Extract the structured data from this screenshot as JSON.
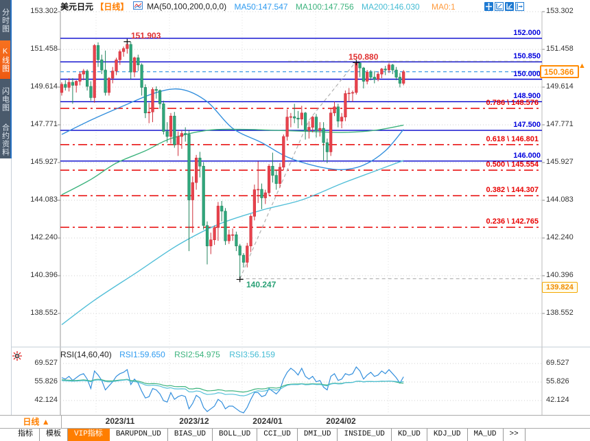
{
  "sidebar": {
    "items": [
      {
        "label": "分时图",
        "active": false
      },
      {
        "label": "K线图",
        "active": true
      },
      {
        "label": "闪电图",
        "active": false
      },
      {
        "label": "合约资料",
        "active": false
      }
    ]
  },
  "header": {
    "symbol": "美元日元",
    "period": "【日线】",
    "ma_formula": "MA(50,100,200,0,0,0)",
    "ma50": "MA50:147.547",
    "ma100": "MA100:147.756",
    "ma200": "MA200:146.030",
    "ma0": "MA0:1",
    "icons": [
      "crosshair-move-icon",
      "axes-icon",
      "axes-filled-icon",
      "pan-right-icon"
    ]
  },
  "colors": {
    "up": "#e8434d",
    "up_stroke": "#cf2f3a",
    "down": "#2fa77c",
    "down_stroke": "#23855f",
    "ma50": "#338fdd",
    "ma100": "#3cb37d",
    "ma200": "#52bfd8",
    "level_blue": "#0000cc",
    "level_red": "#e60000",
    "current_dash": "#45a0e6",
    "accent_orange": "#ff8a00",
    "grid": "#cfcfcf",
    "trend": "#b0b0b0"
  },
  "price_axis": {
    "ticks": [
      153.302,
      151.458,
      149.614,
      147.771,
      145.927,
      144.083,
      142.24,
      140.396,
      138.552
    ],
    "last_price": "150.366",
    "alert_price": "139.824"
  },
  "chart_data": {
    "type": "candlestick",
    "title": "USD/JPY Daily",
    "ylim": [
      138.552,
      153.302
    ],
    "levels": [
      {
        "price": 152.0,
        "label": "152.000"
      },
      {
        "price": 150.85,
        "label": "150.850"
      },
      {
        "price": 150.0,
        "label": "150.000"
      },
      {
        "price": 148.9,
        "label": "148.900"
      },
      {
        "price": 147.5,
        "label": "147.500"
      },
      {
        "price": 146.0,
        "label": "146.000"
      }
    ],
    "fib_levels": [
      {
        "ratio": "0.786",
        "price": 148.576,
        "label": "0.786 \\ 148.576"
      },
      {
        "ratio": "0.618",
        "price": 146.801,
        "label": "0.618 \\ 146.801"
      },
      {
        "ratio": "0.500",
        "price": 145.554,
        "label": "0.500 \\ 145.554"
      },
      {
        "ratio": "0.382",
        "price": 144.307,
        "label": "0.382 \\ 144.307"
      },
      {
        "ratio": "0.236",
        "price": 142.765,
        "label": "0.236 \\ 142.765"
      }
    ],
    "current_price": 150.366,
    "swings": [
      {
        "label": "151.903",
        "price": 151.903,
        "bar": 18,
        "kind": "high",
        "color": "#e03030"
      },
      {
        "label": "150.880",
        "price": 150.88,
        "bar": 81,
        "kind": "high",
        "color": "#e03030"
      },
      {
        "label": "140.247",
        "price": 140.247,
        "bar": 49,
        "kind": "low",
        "color": "#2aa176"
      }
    ],
    "trendline": {
      "points": [
        [
          49,
          140.247
        ],
        [
          68,
          148.0
        ],
        [
          81,
          150.88
        ]
      ],
      "low_hline": 140.247,
      "high_hline": 150.88
    },
    "candles": [
      [
        149.35,
        149.85,
        149.2,
        149.75
      ],
      [
        149.75,
        149.95,
        149.45,
        149.6
      ],
      [
        149.6,
        150.05,
        149.4,
        149.85
      ],
      [
        149.85,
        150.05,
        148.8,
        149.7
      ],
      [
        149.7,
        149.95,
        149.35,
        149.9
      ],
      [
        149.9,
        150.35,
        149.7,
        150.25
      ],
      [
        150.25,
        150.5,
        149.95,
        150.4
      ],
      [
        150.4,
        150.48,
        149.45,
        149.65
      ],
      [
        149.65,
        149.9,
        148.95,
        149.1
      ],
      [
        149.1,
        151.72,
        148.85,
        151.65
      ],
      [
        151.65,
        151.8,
        150.6,
        150.95
      ],
      [
        150.95,
        151.2,
        150.25,
        150.45
      ],
      [
        150.45,
        151.4,
        149.2,
        149.35
      ],
      [
        149.35,
        150.1,
        149.2,
        150.05
      ],
      [
        150.05,
        150.6,
        149.8,
        150.4
      ],
      [
        150.4,
        151.05,
        150.2,
        150.95
      ],
      [
        150.95,
        151.45,
        150.7,
        151.35
      ],
      [
        151.35,
        151.6,
        151.1,
        151.5
      ],
      [
        151.5,
        151.9,
        151.25,
        151.7
      ],
      [
        151.7,
        151.82,
        150.0,
        150.35
      ],
      [
        150.35,
        151.1,
        150.1,
        151.05
      ],
      [
        151.05,
        151.2,
        150.4,
        150.7
      ],
      [
        150.7,
        150.78,
        149.2,
        149.6
      ],
      [
        149.6,
        149.75,
        148.1,
        148.35
      ],
      [
        148.35,
        148.85,
        147.85,
        148.4
      ],
      [
        148.4,
        149.6,
        147.9,
        149.5
      ],
      [
        149.5,
        149.65,
        149.05,
        149.45
      ],
      [
        149.45,
        149.5,
        148.55,
        148.8
      ],
      [
        148.8,
        148.95,
        147.3,
        147.45
      ],
      [
        147.45,
        147.9,
        146.9,
        147.2
      ],
      [
        147.2,
        148.35,
        146.85,
        148.2
      ],
      [
        148.2,
        148.4,
        146.65,
        146.8
      ],
      [
        146.8,
        147.45,
        146.25,
        147.2
      ],
      [
        147.2,
        147.5,
        146.6,
        147.35
      ],
      [
        147.35,
        147.65,
        146.95,
        147.3
      ],
      [
        147.3,
        147.5,
        141.6,
        144.1
      ],
      [
        144.1,
        145.25,
        142.5,
        144.95
      ],
      [
        144.95,
        146.3,
        144.6,
        146.15
      ],
      [
        146.15,
        146.45,
        145.2,
        145.75
      ],
      [
        145.75,
        145.95,
        142.65,
        142.85
      ],
      [
        142.85,
        143.05,
        140.95,
        141.85
      ],
      [
        141.85,
        142.5,
        141.45,
        142.15
      ],
      [
        142.15,
        142.85,
        141.9,
        142.75
      ],
      [
        142.75,
        144.0,
        142.1,
        143.8
      ],
      [
        143.8,
        144.05,
        143.05,
        143.55
      ],
      [
        143.55,
        143.7,
        141.9,
        142.1
      ],
      [
        142.1,
        142.65,
        141.95,
        142.4
      ],
      [
        142.4,
        142.7,
        142.1,
        142.4
      ],
      [
        142.4,
        142.55,
        141.6,
        141.85
      ],
      [
        141.85,
        141.95,
        140.25,
        141.4
      ],
      [
        141.4,
        141.5,
        140.8,
        141.05
      ],
      [
        141.05,
        142.0,
        140.8,
        141.85
      ],
      [
        141.85,
        143.4,
        141.55,
        143.3
      ],
      [
        143.3,
        144.85,
        143.1,
        144.6
      ],
      [
        144.6,
        145.98,
        143.95,
        144.62
      ],
      [
        144.62,
        144.9,
        143.65,
        144.2
      ],
      [
        144.2,
        144.6,
        143.9,
        144.45
      ],
      [
        144.45,
        145.85,
        144.3,
        145.75
      ],
      [
        145.75,
        146.41,
        144.95,
        145.3
      ],
      [
        145.3,
        145.55,
        144.6,
        144.9
      ],
      [
        144.9,
        145.9,
        144.7,
        145.7
      ],
      [
        145.7,
        147.3,
        145.55,
        147.2
      ],
      [
        147.2,
        148.52,
        147.0,
        148.15
      ],
      [
        148.15,
        148.35,
        147.65,
        148.17
      ],
      [
        148.17,
        148.8,
        147.85,
        148.1
      ],
      [
        148.1,
        148.45,
        147.6,
        148.05
      ],
      [
        148.05,
        148.7,
        147.75,
        148.35
      ],
      [
        148.35,
        148.4,
        147.05,
        147.5
      ],
      [
        147.5,
        147.95,
        147.1,
        147.65
      ],
      [
        147.65,
        148.2,
        147.4,
        148.15
      ],
      [
        148.15,
        148.3,
        147.15,
        147.5
      ],
      [
        147.5,
        147.9,
        147.2,
        147.6
      ],
      [
        147.6,
        147.9,
        146.0,
        146.9
      ],
      [
        146.9,
        147.1,
        145.9,
        146.45
      ],
      [
        146.45,
        148.55,
        146.25,
        148.35
      ],
      [
        148.35,
        148.9,
        148.2,
        148.65
      ],
      [
        148.65,
        148.8,
        147.65,
        147.95
      ],
      [
        147.95,
        148.35,
        147.6,
        148.15
      ],
      [
        148.15,
        149.45,
        147.95,
        149.3
      ],
      [
        149.3,
        149.57,
        148.9,
        149.32
      ],
      [
        149.32,
        149.45,
        148.9,
        149.35
      ],
      [
        149.35,
        150.88,
        149.25,
        150.8
      ],
      [
        150.8,
        150.85,
        150.1,
        150.55
      ],
      [
        150.55,
        150.6,
        149.55,
        149.9
      ],
      [
        149.9,
        150.45,
        149.75,
        150.35
      ],
      [
        150.35,
        150.45,
        149.95,
        150.1
      ],
      [
        150.1,
        150.4,
        149.8,
        150.0
      ],
      [
        150.0,
        150.35,
        149.9,
        150.25
      ],
      [
        150.25,
        150.55,
        150.05,
        150.5
      ],
      [
        150.5,
        150.65,
        150.2,
        150.45
      ],
      [
        150.45,
        150.8,
        150.3,
        150.7
      ],
      [
        150.7,
        150.75,
        150.25,
        150.45
      ],
      [
        150.45,
        150.6,
        149.95,
        150.1
      ],
      [
        150.1,
        150.3,
        149.6,
        149.8
      ],
      [
        149.8,
        150.45,
        149.7,
        150.366
      ]
    ],
    "ma50_points": [
      [
        0,
        147.3
      ],
      [
        8,
        148.0
      ],
      [
        17,
        148.7
      ],
      [
        26,
        149.35
      ],
      [
        33,
        149.5
      ],
      [
        40,
        148.9
      ],
      [
        47,
        147.6
      ],
      [
        55,
        146.9
      ],
      [
        62,
        146.2
      ],
      [
        70,
        145.75
      ],
      [
        77,
        145.58
      ],
      [
        83,
        145.8
      ],
      [
        89,
        146.5
      ],
      [
        94,
        147.547
      ]
    ],
    "ma100_points": [
      [
        0,
        144.35
      ],
      [
        8,
        145.1
      ],
      [
        15,
        145.9
      ],
      [
        23,
        146.5
      ],
      [
        30,
        147.1
      ],
      [
        40,
        147.5
      ],
      [
        49,
        147.55
      ],
      [
        59,
        147.5
      ],
      [
        68,
        147.45
      ],
      [
        77,
        147.4
      ],
      [
        86,
        147.5
      ],
      [
        94,
        147.756
      ]
    ],
    "ma200_points": [
      [
        0,
        138.0
      ],
      [
        9,
        139.2
      ],
      [
        21,
        140.6
      ],
      [
        32,
        141.9
      ],
      [
        43,
        142.9
      ],
      [
        55,
        143.6
      ],
      [
        66,
        144.1
      ],
      [
        77,
        144.9
      ],
      [
        86,
        145.5
      ],
      [
        94,
        146.03
      ]
    ],
    "rsi": {
      "formula": "RSI(14,60,40)",
      "rsi1_label": "RSI1:59.650",
      "rsi2_label": "RSI2:54.975",
      "rsi3_label": "RSI3:56.159",
      "ticks": [
        69.527,
        55.826,
        42.124
      ],
      "rsi1": [
        59,
        58,
        60,
        57,
        59,
        61,
        62,
        58,
        51,
        64,
        61,
        57,
        50,
        53,
        56,
        60,
        62,
        63,
        65,
        54,
        58,
        55,
        49,
        44,
        45,
        51,
        50,
        47,
        42,
        41,
        48,
        43,
        45,
        46,
        45,
        36,
        40,
        46,
        44,
        37,
        34,
        36,
        38,
        43,
        41,
        36,
        38,
        38,
        36,
        34,
        33,
        37,
        43,
        48,
        48,
        45,
        46,
        51,
        49,
        47,
        50,
        58,
        63,
        66,
        64,
        61,
        66,
        60,
        58,
        60,
        56,
        57,
        52,
        50,
        60,
        62,
        57,
        58,
        62,
        61,
        62,
        67,
        64,
        58,
        61,
        63,
        60,
        61,
        64,
        62,
        65,
        62,
        59,
        55,
        59.65
      ],
      "rsi2": [
        57.5,
        57.3,
        57.2,
        57.0,
        57.0,
        57.2,
        57.4,
        57.1,
        56.6,
        57.5,
        57.8,
        57.5,
        56.8,
        56.6,
        56.7,
        57.0,
        57.3,
        57.5,
        57.8,
        56.9,
        56.8,
        56.5,
        55.8,
        54.8,
        54.5,
        54.7,
        54.6,
        54.2,
        53.4,
        52.9,
        53.2,
        52.5,
        52.4,
        52.5,
        52.4,
        50.8,
        50.7,
        51.2,
        51.0,
        50.0,
        49.3,
        49.4,
        49.6,
        50.1,
        49.9,
        49.2,
        49.3,
        49.3,
        49.0,
        48.6,
        48.4,
        48.8,
        49.6,
        50.5,
        50.9,
        50.7,
        50.9,
        51.6,
        51.6,
        51.3,
        51.8,
        53.0,
        53.9,
        54.2,
        54.3,
        54.3,
        54.6,
        54.2,
        54.3,
        54.6,
        54.3,
        54.4,
        53.9,
        53.6,
        54.6,
        55.0,
        54.7,
        54.8,
        55.4,
        55.5,
        55.6,
        56.3,
        56.4,
        56.0,
        56.2,
        56.2,
        56.1,
        56.2,
        56.4,
        56.3,
        56.5,
        56.3,
        55.8,
        55.2,
        54.975
      ],
      "rsi3": [
        56.9,
        56.7,
        56.6,
        56.4,
        56.5,
        56.7,
        56.9,
        56.6,
        56.0,
        57.1,
        57.4,
        57.0,
        56.2,
        55.9,
        56.1,
        56.5,
        56.9,
        57.2,
        57.5,
        56.3,
        56.1,
        55.7,
        54.8,
        53.6,
        53.2,
        53.5,
        53.3,
        52.8,
        51.8,
        51.2,
        51.6,
        50.8,
        50.7,
        50.8,
        50.7,
        48.6,
        48.5,
        49.2,
        48.9,
        47.5,
        46.6,
        46.8,
        47.1,
        47.9,
        47.6,
        46.6,
        46.8,
        46.8,
        46.4,
        45.8,
        45.6,
        46.2,
        47.4,
        48.7,
        49.3,
        49.0,
        49.3,
        50.3,
        50.2,
        49.8,
        50.4,
        52.1,
        53.4,
        53.9,
        54.0,
        53.9,
        54.4,
        53.8,
        53.9,
        54.3,
        53.9,
        54.0,
        53.4,
        53.0,
        54.3,
        54.8,
        54.4,
        54.5,
        55.3,
        55.4,
        55.5,
        56.4,
        56.5,
        55.9,
        56.2,
        56.3,
        56.1,
        56.2,
        56.5,
        56.4,
        56.6,
        56.4,
        56.2,
        55.8,
        56.159
      ]
    }
  },
  "timeline": {
    "period_label": "日线 ▲",
    "dates": [
      {
        "label": "2023/11",
        "x": 175
      },
      {
        "label": "2023/12",
        "x": 283
      },
      {
        "label": "2024/01",
        "x": 390
      },
      {
        "label": "2024/02",
        "x": 497
      }
    ]
  },
  "tabs": [
    {
      "label": "指标",
      "active": false
    },
    {
      "label": "模板",
      "active": false
    },
    {
      "label": "VIP指标",
      "active": true
    },
    {
      "label": "BARUPDN_UD",
      "active": false
    },
    {
      "label": "BIAS_UD",
      "active": false
    },
    {
      "label": "BOLL_UD",
      "active": false
    },
    {
      "label": "CCI_UD",
      "active": false
    },
    {
      "label": "DMI_UD",
      "active": false
    },
    {
      "label": "INSIDE_UD",
      "active": false
    },
    {
      "label": "KD_UD",
      "active": false
    },
    {
      "label": "KDJ_UD",
      "active": false
    },
    {
      "label": "MA_UD",
      "active": false
    },
    {
      "label": ">>",
      "active": false
    }
  ]
}
